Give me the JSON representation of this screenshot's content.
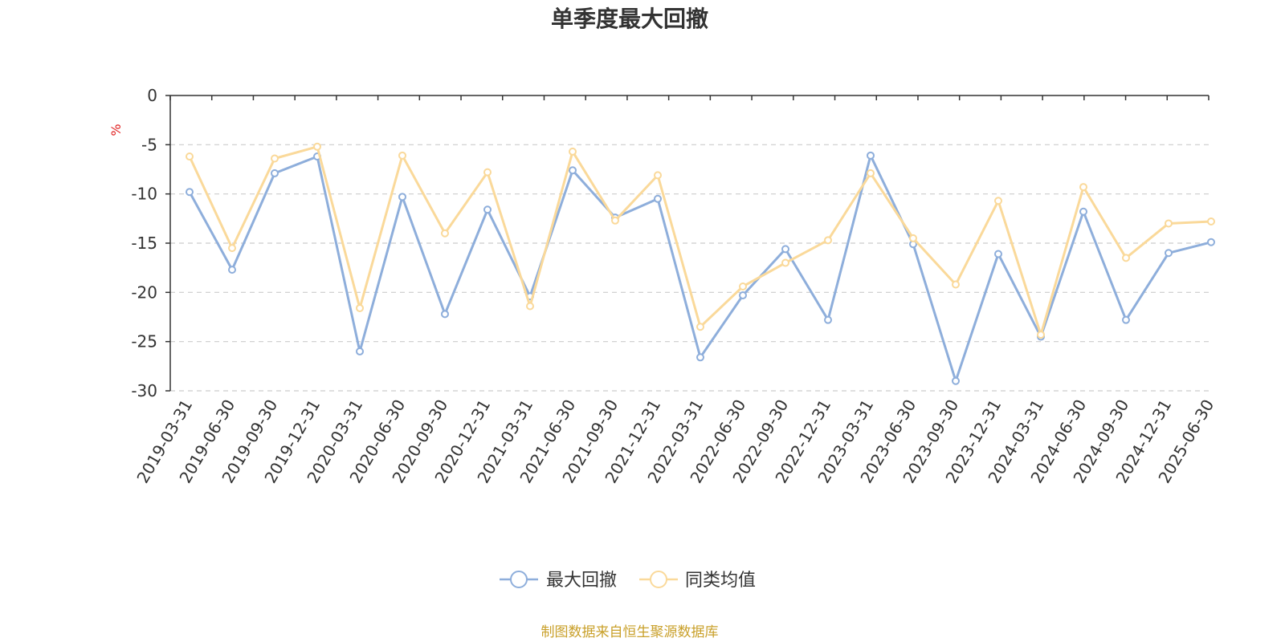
{
  "chart_data": {
    "type": "line",
    "title": "单季度最大回撤",
    "ylabel": "%",
    "ylim": [
      -30,
      0
    ],
    "yticks": [
      0,
      -5,
      -10,
      -15,
      -20,
      -25,
      -30
    ],
    "grid": true,
    "legend_position": "bottom-center",
    "categories": [
      "2019-03-31",
      "2019-06-30",
      "2019-09-30",
      "2019-12-31",
      "2020-03-31",
      "2020-06-30",
      "2020-09-30",
      "2020-12-31",
      "2021-03-31",
      "2021-06-30",
      "2021-09-30",
      "2021-12-31",
      "2022-03-31",
      "2022-06-30",
      "2022-09-30",
      "2022-12-31",
      "2023-03-31",
      "2023-06-30",
      "2023-09-30",
      "2023-12-31",
      "2024-03-31",
      "2024-06-30",
      "2024-09-30",
      "2024-12-31",
      "2025-06-30"
    ],
    "series": [
      {
        "name": "最大回撤",
        "color": "#8eaedb",
        "values": [
          -9.8,
          -17.7,
          -7.9,
          -6.2,
          -26.0,
          -10.3,
          -22.2,
          -11.6,
          -20.4,
          -7.6,
          -12.4,
          -10.5,
          -26.6,
          -20.3,
          -15.6,
          -22.8,
          -6.1,
          -15.1,
          -29.0,
          -16.1,
          -24.5,
          -11.8,
          -22.8,
          -16.0,
          -14.9
        ]
      },
      {
        "name": "同类均值",
        "color": "#fad99a",
        "values": [
          -6.2,
          -15.5,
          -6.4,
          -5.2,
          -21.6,
          -6.1,
          -14.0,
          -7.8,
          -21.4,
          -5.7,
          -12.7,
          -8.1,
          -23.5,
          -19.4,
          -17.0,
          -14.7,
          -7.9,
          -14.5,
          -19.2,
          -10.7,
          -24.3,
          -9.3,
          -16.5,
          -13.0,
          -12.8
        ]
      }
    ],
    "axis_color": "#333333",
    "grid_color": "#cccccc",
    "ylabel_color": "#e02020"
  },
  "footer": {
    "source": "制图数据来自恒生聚源数据库",
    "color": "#c9a02a"
  }
}
